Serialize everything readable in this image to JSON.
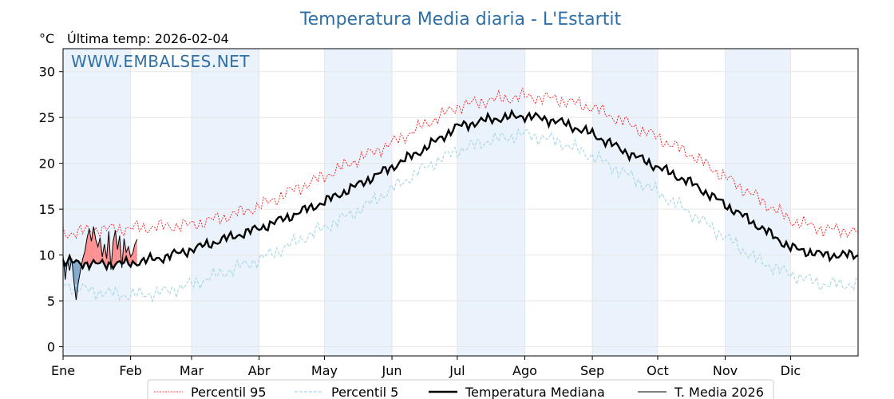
{
  "chart_data": {
    "type": "line",
    "title": "Temperatura Media diaria - L'Estartit",
    "unit_label": "°C",
    "last_temp_label": "Última temp: 2026-02-04",
    "watermark": "WWW.EMBALSES.NET",
    "ylim": [
      -1,
      32.5
    ],
    "yticks": [
      0,
      5,
      10,
      15,
      20,
      25,
      30
    ],
    "xlim": [
      0,
      365
    ],
    "months": [
      {
        "label": "Ene",
        "start": 0
      },
      {
        "label": "Feb",
        "start": 31
      },
      {
        "label": "Mar",
        "start": 59
      },
      {
        "label": "Abr",
        "start": 90
      },
      {
        "label": "May",
        "start": 120
      },
      {
        "label": "Jun",
        "start": 151
      },
      {
        "label": "Jul",
        "start": 181
      },
      {
        "label": "Ago",
        "start": 212
      },
      {
        "label": "Sep",
        "start": 243
      },
      {
        "label": "Oct",
        "start": 273
      },
      {
        "label": "Nov",
        "start": 304
      },
      {
        "label": "Dic",
        "start": 334
      }
    ],
    "grid": true,
    "legend_position": "bottom",
    "colors": {
      "p95": "#ff0000",
      "p5": "#add8e6",
      "median": "#000000",
      "current": "#000000",
      "above_fill": "#ff8080",
      "below_fill": "#6f9cc8",
      "shade": "#eaf2fb",
      "title": "#2f6fa6"
    },
    "series": [
      {
        "key": "p95",
        "name": "Percentil 95",
        "x": [
          0,
          15,
          31,
          45,
          59,
          75,
          90,
          105,
          120,
          135,
          151,
          166,
          181,
          196,
          212,
          227,
          243,
          258,
          273,
          288,
          304,
          319,
          334,
          349,
          365
        ],
        "values": [
          12.3,
          12.8,
          12.9,
          13.1,
          13.3,
          14.2,
          15.3,
          17.0,
          18.6,
          20.4,
          22.2,
          24.2,
          26.2,
          26.9,
          27.3,
          27.0,
          26.1,
          24.5,
          22.8,
          21.0,
          18.5,
          16.2,
          13.8,
          12.8,
          12.6
        ]
      },
      {
        "key": "p5",
        "name": "Percentil 5",
        "x": [
          0,
          15,
          31,
          45,
          59,
          75,
          90,
          105,
          120,
          135,
          151,
          166,
          181,
          196,
          212,
          227,
          243,
          258,
          273,
          288,
          304,
          319,
          334,
          349,
          365
        ],
        "values": [
          6.8,
          6.0,
          5.6,
          5.9,
          6.8,
          8.2,
          9.5,
          11.2,
          13.0,
          14.8,
          17.2,
          19.5,
          21.4,
          22.5,
          23.2,
          22.4,
          20.8,
          18.9,
          16.8,
          14.6,
          12.0,
          9.4,
          7.9,
          6.8,
          6.8
        ]
      },
      {
        "key": "median",
        "name": "Temperatura Mediana",
        "x": [
          0,
          15,
          31,
          45,
          59,
          75,
          90,
          105,
          120,
          135,
          151,
          166,
          181,
          196,
          212,
          227,
          243,
          258,
          273,
          288,
          304,
          319,
          334,
          349,
          365
        ],
        "values": [
          9.3,
          9.0,
          9.1,
          9.7,
          10.6,
          11.8,
          12.9,
          14.3,
          15.8,
          17.6,
          19.6,
          21.6,
          24.0,
          24.8,
          25.2,
          24.6,
          23.2,
          21.3,
          19.6,
          17.9,
          15.5,
          13.2,
          10.8,
          10.0,
          10.0
        ]
      },
      {
        "key": "current",
        "name": "T. Media 2026",
        "x": [
          0,
          1,
          2,
          3,
          4,
          5,
          6,
          7,
          8,
          9,
          10,
          11,
          12,
          13,
          14,
          15,
          16,
          17,
          18,
          19,
          20,
          21,
          22,
          23,
          24,
          25,
          26,
          27,
          28,
          29,
          30,
          31,
          32,
          33,
          34
        ],
        "values": [
          10.0,
          7.3,
          9.4,
          8.3,
          9.6,
          7.1,
          5.1,
          7.0,
          8.3,
          9.6,
          10.4,
          11.8,
          12.9,
          11.5,
          13.1,
          11.7,
          10.9,
          11.9,
          9.8,
          11.2,
          9.6,
          12.6,
          8.4,
          11.5,
          12.7,
          10.6,
          12.1,
          8.6,
          11.8,
          10.3,
          10.9,
          9.8,
          10.2,
          11.2,
          11.7
        ]
      }
    ]
  },
  "legend": {
    "items": [
      {
        "key": "p95",
        "label": "Percentil 95"
      },
      {
        "key": "p5",
        "label": "Percentil 5"
      },
      {
        "key": "median",
        "label": "Temperatura Mediana"
      },
      {
        "key": "current",
        "label": "T. Media 2026"
      }
    ]
  }
}
